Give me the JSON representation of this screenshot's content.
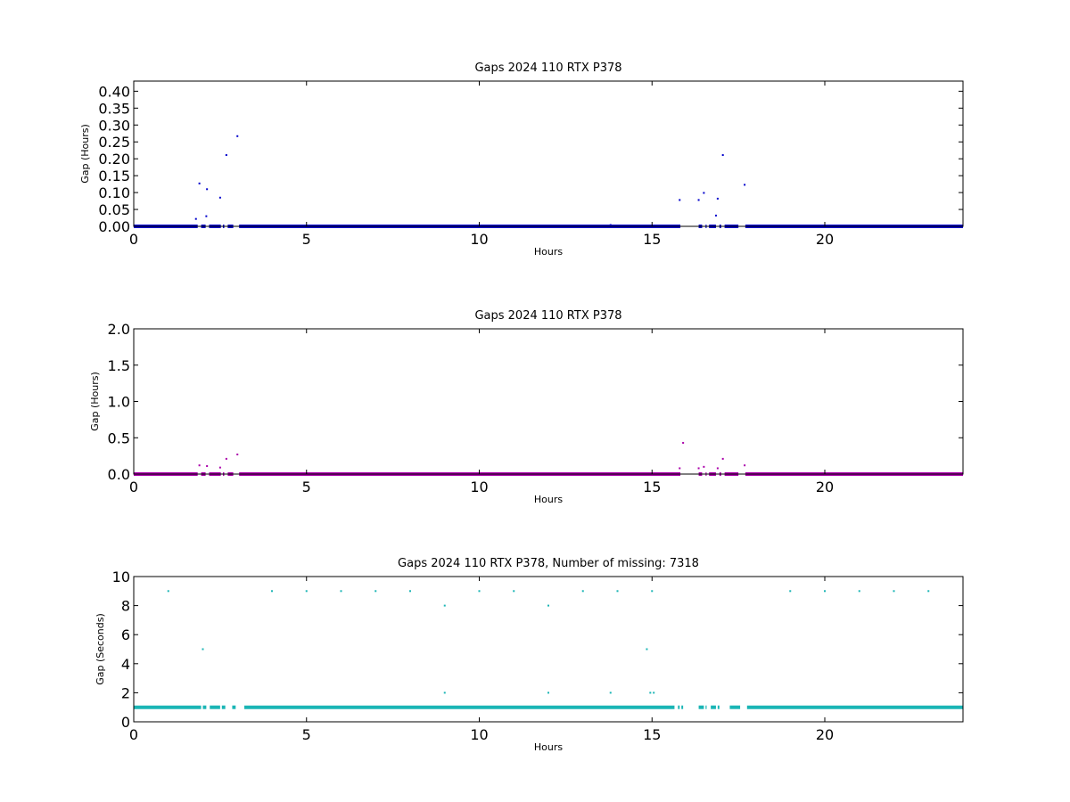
{
  "chart_data": [
    {
      "type": "scatter",
      "title": "Gaps 2024 110 RTX  P378",
      "xlabel": "Hours",
      "ylabel": "Gap (Hours)",
      "xlim": [
        0,
        24
      ],
      "ylim": [
        0,
        0.43
      ],
      "xticks": [
        0,
        5,
        10,
        15,
        20
      ],
      "xtick_labels": [
        "0",
        "5",
        "10",
        "15",
        "20"
      ],
      "yticks": [
        0,
        0.05,
        0.1,
        0.15,
        0.2,
        0.25,
        0.3,
        0.35,
        0.4
      ],
      "ytick_labels": [
        "0.00",
        "0.05",
        "0.10",
        "0.15",
        "0.20",
        "0.25",
        "0.30",
        "0.35",
        "0.40"
      ],
      "color": "#0000cc",
      "grid": false,
      "baseline": {
        "y": 0.0,
        "segments": [
          [
            0,
            1.85
          ],
          [
            1.95,
            2.08
          ],
          [
            2.18,
            2.52
          ],
          [
            2.58,
            2.62
          ],
          [
            2.72,
            2.88
          ],
          [
            3.05,
            15.82
          ],
          [
            16.35,
            16.45
          ],
          [
            16.55,
            16.58
          ],
          [
            16.65,
            16.85
          ],
          [
            16.95,
            17.0
          ],
          [
            17.1,
            17.5
          ],
          [
            17.7,
            24
          ]
        ]
      },
      "points": [
        {
          "x": 1.8,
          "y": 0.022
        },
        {
          "x": 1.9,
          "y": 0.127
        },
        {
          "x": 2.1,
          "y": 0.03
        },
        {
          "x": 2.12,
          "y": 0.11
        },
        {
          "x": 2.5,
          "y": 0.085
        },
        {
          "x": 2.68,
          "y": 0.211
        },
        {
          "x": 3.0,
          "y": 0.267
        },
        {
          "x": 13.8,
          "y": 0.004
        },
        {
          "x": 15.8,
          "y": 0.078
        },
        {
          "x": 16.35,
          "y": 0.078
        },
        {
          "x": 16.5,
          "y": 0.099
        },
        {
          "x": 16.85,
          "y": 0.032
        },
        {
          "x": 16.9,
          "y": 0.082
        },
        {
          "x": 17.05,
          "y": 0.211
        },
        {
          "x": 17.68,
          "y": 0.123
        }
      ]
    },
    {
      "type": "scatter",
      "title": "Gaps 2024 110 RTX  P378",
      "xlabel": "Hours",
      "ylabel": "Gap (Hours)",
      "xlim": [
        0,
        24
      ],
      "ylim": [
        0,
        2.0
      ],
      "xticks": [
        0,
        5,
        10,
        15,
        20
      ],
      "xtick_labels": [
        "0",
        "5",
        "10",
        "15",
        "20"
      ],
      "yticks": [
        0,
        0.5,
        1.0,
        1.5,
        2.0
      ],
      "ytick_labels": [
        "0.0",
        "0.5",
        "1.0",
        "1.5",
        "2.0"
      ],
      "color": "#aa00aa",
      "grid": false,
      "baseline": {
        "y": 0.0,
        "segments": [
          [
            0,
            1.85
          ],
          [
            1.95,
            2.08
          ],
          [
            2.18,
            2.52
          ],
          [
            2.58,
            2.62
          ],
          [
            2.72,
            2.88
          ],
          [
            3.05,
            15.82
          ],
          [
            16.35,
            16.45
          ],
          [
            16.55,
            16.58
          ],
          [
            16.65,
            16.85
          ],
          [
            16.95,
            17.0
          ],
          [
            17.1,
            17.5
          ],
          [
            17.7,
            24
          ]
        ]
      },
      "points": [
        {
          "x": 1.9,
          "y": 0.12
        },
        {
          "x": 2.12,
          "y": 0.11
        },
        {
          "x": 2.5,
          "y": 0.09
        },
        {
          "x": 2.68,
          "y": 0.21
        },
        {
          "x": 3.0,
          "y": 0.27
        },
        {
          "x": 15.8,
          "y": 0.08
        },
        {
          "x": 15.9,
          "y": 0.43
        },
        {
          "x": 16.35,
          "y": 0.08
        },
        {
          "x": 16.5,
          "y": 0.1
        },
        {
          "x": 16.9,
          "y": 0.08
        },
        {
          "x": 17.05,
          "y": 0.21
        },
        {
          "x": 17.68,
          "y": 0.12
        }
      ]
    },
    {
      "type": "scatter",
      "title": "Gaps 2024 110 RTX  P378, Number of missing: 7318",
      "xlabel": "Hours",
      "ylabel": "Gap (Seconds)",
      "xlim": [
        0,
        24
      ],
      "ylim": [
        0,
        10
      ],
      "xticks": [
        0,
        5,
        10,
        15,
        20
      ],
      "xtick_labels": [
        "0",
        "5",
        "10",
        "15",
        "20"
      ],
      "yticks": [
        0,
        2,
        4,
        6,
        8,
        10
      ],
      "ytick_labels": [
        "0",
        "2",
        "4",
        "6",
        "8",
        "10"
      ],
      "color": "#1ab5b5",
      "grid": false,
      "baseline": {
        "y": 1.0,
        "segments": [
          [
            0,
            1.95
          ],
          [
            2.0,
            2.1
          ],
          [
            2.2,
            2.5
          ],
          [
            2.55,
            2.65
          ],
          [
            2.85,
            2.95
          ],
          [
            3.2,
            15.65
          ],
          [
            15.75,
            15.8
          ],
          [
            15.85,
            15.9
          ],
          [
            16.35,
            16.5
          ],
          [
            16.55,
            16.58
          ],
          [
            16.7,
            16.85
          ],
          [
            16.9,
            16.95
          ],
          [
            17.25,
            17.55
          ],
          [
            17.75,
            24
          ]
        ]
      },
      "points": [
        {
          "x": 1,
          "y": 9
        },
        {
          "x": 4,
          "y": 9
        },
        {
          "x": 5,
          "y": 9
        },
        {
          "x": 6,
          "y": 9
        },
        {
          "x": 7,
          "y": 9
        },
        {
          "x": 8,
          "y": 9
        },
        {
          "x": 10,
          "y": 9
        },
        {
          "x": 11,
          "y": 9
        },
        {
          "x": 13,
          "y": 9
        },
        {
          "x": 14,
          "y": 9
        },
        {
          "x": 15,
          "y": 9
        },
        {
          "x": 19,
          "y": 9
        },
        {
          "x": 20,
          "y": 9
        },
        {
          "x": 21,
          "y": 9
        },
        {
          "x": 22,
          "y": 9
        },
        {
          "x": 23,
          "y": 9
        },
        {
          "x": 9,
          "y": 8
        },
        {
          "x": 12,
          "y": 8
        },
        {
          "x": 2,
          "y": 5
        },
        {
          "x": 14.85,
          "y": 5
        },
        {
          "x": 9,
          "y": 2
        },
        {
          "x": 12,
          "y": 2
        },
        {
          "x": 13.8,
          "y": 2
        },
        {
          "x": 14.95,
          "y": 2
        },
        {
          "x": 15.05,
          "y": 2
        }
      ]
    }
  ]
}
